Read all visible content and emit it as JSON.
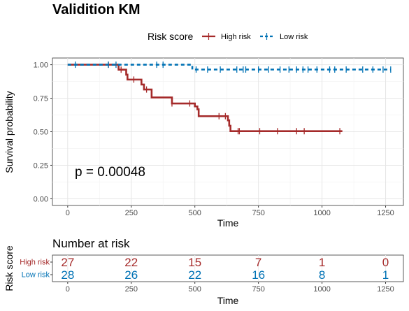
{
  "title": "Validition KM",
  "legend": {
    "title": "Risk score",
    "items": [
      {
        "label": "High risk",
        "color": "#a52a2a",
        "style": "solid"
      },
      {
        "label": "Low risk",
        "color": "#0072b5",
        "style": "dashed"
      }
    ]
  },
  "chart_data": {
    "type": "line",
    "subtype": "kaplan-meier",
    "xlabel": "Time",
    "ylabel": "Survival probability",
    "xlim": [
      -60,
      1320
    ],
    "ylim": [
      -0.05,
      1.05
    ],
    "xticks": [
      0,
      250,
      500,
      750,
      1000,
      1250
    ],
    "yticks": [
      0.0,
      0.25,
      0.5,
      0.75,
      1.0
    ],
    "ytick_labels": [
      "0.00",
      "0.25",
      "0.50",
      "0.75",
      "1.00"
    ],
    "grid": true,
    "annotation": "p = 0.00048",
    "series": [
      {
        "name": "High risk",
        "color": "#a52a2a",
        "steps": [
          [
            0,
            1.0
          ],
          [
            200,
            0.963
          ],
          [
            230,
            0.926
          ],
          [
            235,
            0.889
          ],
          [
            290,
            0.852
          ],
          [
            300,
            0.815
          ],
          [
            330,
            0.778
          ],
          [
            330,
            0.756
          ],
          [
            410,
            0.733
          ],
          [
            410,
            0.711
          ],
          [
            500,
            0.689
          ],
          [
            510,
            0.667
          ],
          [
            515,
            0.644
          ],
          [
            515,
            0.616
          ],
          [
            630,
            0.585
          ],
          [
            635,
            0.545
          ],
          [
            640,
            0.504
          ],
          [
            1080,
            0.504
          ]
        ],
        "censor": [
          160,
          210,
          260,
          310,
          410,
          480,
          595,
          620,
          670,
          675,
          755,
          825,
          900,
          930,
          1070
        ]
      },
      {
        "name": "Low risk",
        "color": "#0072b5",
        "steps": [
          [
            0,
            1.0
          ],
          [
            485,
            1.0
          ],
          [
            490,
            0.964
          ],
          [
            1270,
            0.964
          ]
        ],
        "censor": [
          30,
          160,
          190,
          350,
          375,
          505,
          550,
          600,
          665,
          690,
          700,
          750,
          790,
          835,
          870,
          900,
          925,
          945,
          980,
          1030,
          1050,
          1095,
          1160,
          1200,
          1240,
          1270
        ]
      }
    ]
  },
  "risk_table": {
    "title": "Number at risk",
    "ylabel": "Risk score",
    "xlabel": "Time",
    "times": [
      0,
      250,
      500,
      750,
      1000,
      1250
    ],
    "rows": [
      {
        "label": "High risk",
        "color": "#a52a2a",
        "values": [
          27,
          22,
          15,
          7,
          1,
          0
        ]
      },
      {
        "label": "Low risk",
        "color": "#0072b5",
        "values": [
          28,
          26,
          22,
          16,
          8,
          1
        ]
      }
    ]
  }
}
